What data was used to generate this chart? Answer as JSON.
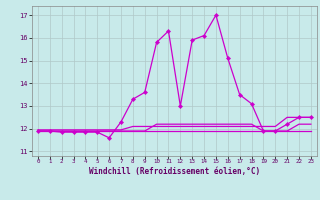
{
  "background_color": "#c8eaea",
  "grid_color": "#b0c8c8",
  "line_color": "#cc00cc",
  "xlabel": "Windchill (Refroidissement éolien,°C)",
  "ylim": [
    10.8,
    17.4
  ],
  "xlim": [
    -0.5,
    23.5
  ],
  "yticks": [
    11,
    12,
    13,
    14,
    15,
    16,
    17
  ],
  "xticks": [
    0,
    1,
    2,
    3,
    4,
    5,
    6,
    7,
    8,
    9,
    10,
    11,
    12,
    13,
    14,
    15,
    16,
    17,
    18,
    19,
    20,
    21,
    22,
    23
  ],
  "main_x": [
    0,
    1,
    2,
    3,
    4,
    5,
    6,
    7,
    8,
    9,
    10,
    11,
    12,
    13,
    14,
    15,
    16,
    17,
    18,
    19,
    20,
    21,
    22,
    23
  ],
  "main_y": [
    11.9,
    11.9,
    11.85,
    11.85,
    11.85,
    11.85,
    11.6,
    12.3,
    13.3,
    13.6,
    15.8,
    16.3,
    13.0,
    15.9,
    16.1,
    17.0,
    15.1,
    13.5,
    13.1,
    11.9,
    11.9,
    12.2,
    12.5,
    12.5
  ],
  "flat1_x": [
    0,
    1,
    2,
    3,
    4,
    5,
    6,
    7,
    8,
    9,
    10,
    11,
    12,
    13,
    14,
    15,
    16,
    17,
    18,
    19,
    20,
    21,
    22,
    23
  ],
  "flat1_y": [
    11.9,
    11.9,
    11.9,
    11.9,
    11.9,
    11.9,
    11.9,
    11.9,
    11.9,
    11.9,
    11.9,
    11.9,
    11.9,
    11.9,
    11.9,
    11.9,
    11.9,
    11.9,
    11.9,
    11.9,
    11.9,
    11.9,
    11.9,
    11.9
  ],
  "flat2_x": [
    0,
    1,
    2,
    3,
    4,
    5,
    6,
    7,
    8,
    9,
    10,
    11,
    12,
    13,
    14,
    15,
    16,
    17,
    18,
    19,
    20,
    21,
    22,
    23
  ],
  "flat2_y": [
    11.95,
    11.95,
    11.95,
    11.95,
    11.95,
    11.95,
    11.95,
    11.95,
    12.1,
    12.1,
    12.1,
    12.1,
    12.1,
    12.1,
    12.1,
    12.1,
    12.1,
    12.1,
    12.1,
    12.1,
    12.1,
    12.5,
    12.5,
    12.5
  ],
  "flat3_x": [
    0,
    1,
    2,
    3,
    4,
    5,
    6,
    7,
    8,
    9,
    10,
    11,
    12,
    13,
    14,
    15,
    16,
    17,
    18,
    19,
    20,
    21,
    22,
    23
  ],
  "flat3_y": [
    11.9,
    11.9,
    11.9,
    11.9,
    11.9,
    11.9,
    11.9,
    11.9,
    11.9,
    11.9,
    12.2,
    12.2,
    12.2,
    12.2,
    12.2,
    12.2,
    12.2,
    12.2,
    12.2,
    11.9,
    11.9,
    11.9,
    12.2,
    12.2
  ],
  "xlabel_fontsize": 5.5,
  "xtick_fontsize": 4.2,
  "ytick_fontsize": 5.0,
  "linewidth": 0.9,
  "markersize": 2.2
}
